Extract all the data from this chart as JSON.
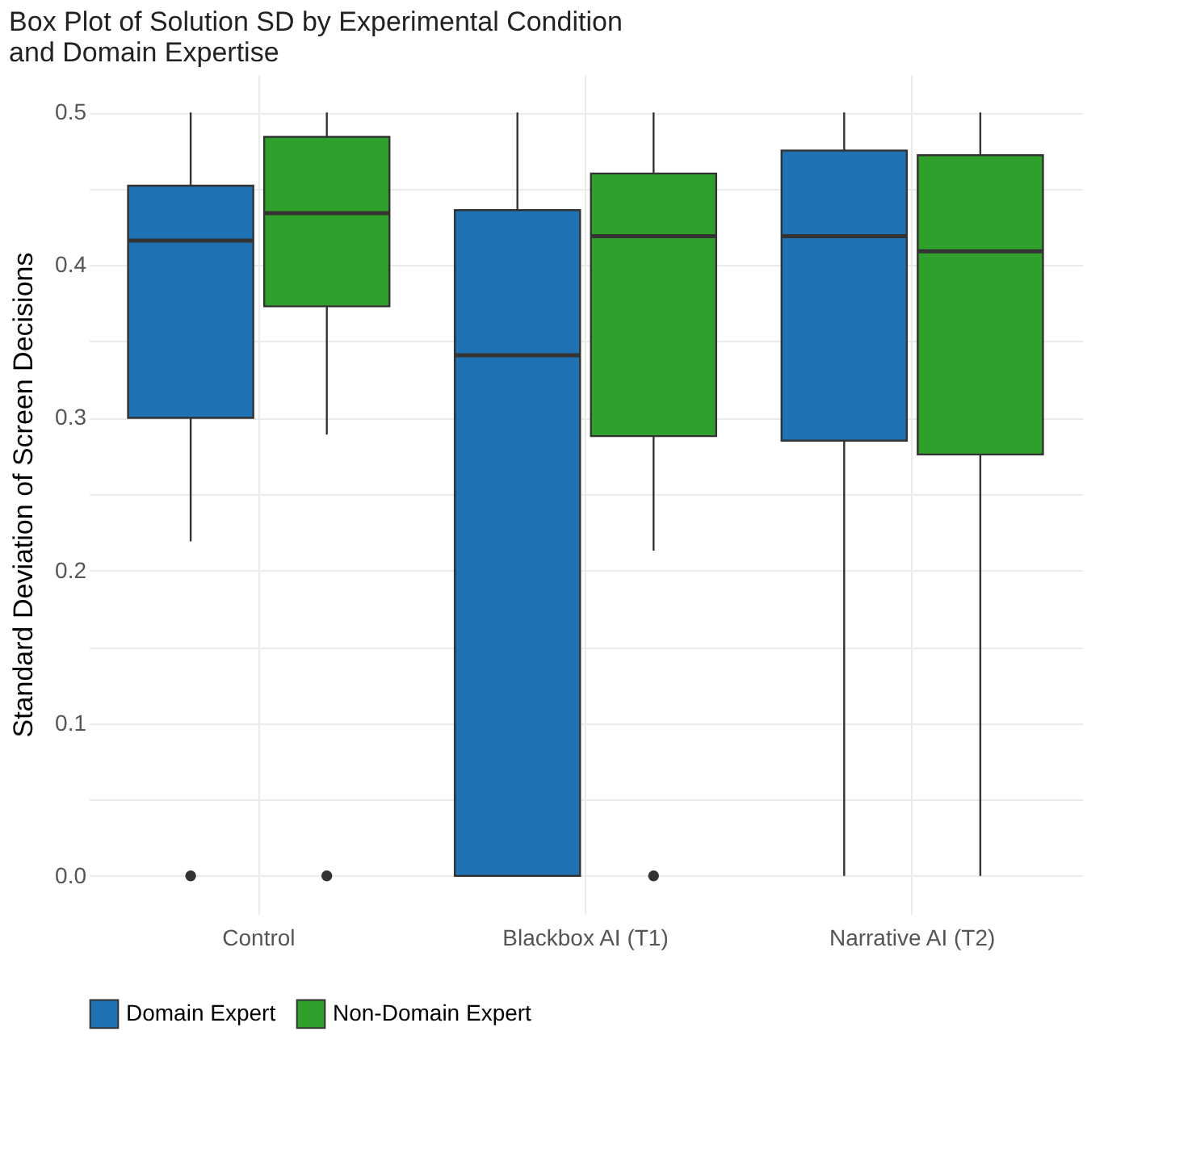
{
  "chart_data": {
    "type": "box",
    "title": "Box Plot of Solution SD by Experimental Condition and Domain Expertise",
    "ylabel": "Standard Deviation of Screen Decisions",
    "categories": [
      "Control",
      "Blackbox AI (T1)",
      "Narrative AI (T2)"
    ],
    "series": [
      {
        "name": "Domain Expert",
        "color": "#1f72b4",
        "boxes": [
          {
            "low": 0.219,
            "q1": 0.3,
            "median": 0.416,
            "q3": 0.452,
            "high": 0.5,
            "outliers": [
              0.0
            ]
          },
          {
            "low": 0.0,
            "q1": 0.0,
            "median": 0.341,
            "q3": 0.436,
            "high": 0.5
          },
          {
            "low": 0.0,
            "q1": 0.285,
            "median": 0.419,
            "q3": 0.475,
            "high": 0.5
          }
        ]
      },
      {
        "name": "Non-Domain Expert",
        "color": "#2ea02b",
        "boxes": [
          {
            "low": 0.289,
            "q1": 0.373,
            "median": 0.434,
            "q3": 0.484,
            "high": 0.5,
            "outliers": [
              0.0
            ]
          },
          {
            "low": 0.213,
            "q1": 0.288,
            "median": 0.419,
            "q3": 0.46,
            "high": 0.5,
            "outliers": [
              0.0
            ]
          },
          {
            "low": 0.0,
            "q1": 0.276,
            "median": 0.409,
            "q3": 0.472,
            "high": 0.5
          }
        ]
      }
    ],
    "ylim": [
      -0.025,
      0.525
    ],
    "yticks": [
      {
        "value": 0,
        "label": "0.0"
      },
      {
        "value": 0.05,
        "label": null
      },
      0.1,
      {
        "value": 0.15,
        "label": null
      },
      0.2,
      {
        "value": 0.25,
        "label": null
      },
      0.3,
      {
        "value": 0.35,
        "label": null
      },
      0.4,
      {
        "value": 0.45,
        "label": null
      },
      0.5
    ],
    "grid": true,
    "legend": "bottom"
  }
}
